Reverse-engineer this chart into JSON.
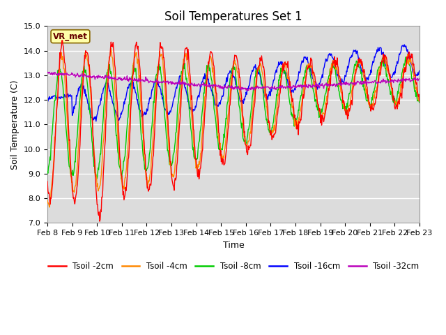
{
  "title": "Soil Temperatures Set 1",
  "xlabel": "Time",
  "ylabel": "Soil Temperature (C)",
  "ylim": [
    7.0,
    15.0
  ],
  "yticks": [
    7.0,
    8.0,
    9.0,
    10.0,
    11.0,
    12.0,
    13.0,
    14.0,
    15.0
  ],
  "x_label_days": [
    8,
    9,
    10,
    11,
    12,
    13,
    14,
    15,
    16,
    17,
    18,
    19,
    20,
    21,
    22,
    23
  ],
  "n_points": 720,
  "total_days": 15,
  "colors": {
    "2cm": "#ff0000",
    "4cm": "#ff8800",
    "8cm": "#00cc00",
    "16cm": "#0000ff",
    "32cm": "#bb00bb"
  },
  "legend_labels": [
    "Tsoil -2cm",
    "Tsoil -4cm",
    "Tsoil -8cm",
    "Tsoil -16cm",
    "Tsoil -32cm"
  ],
  "vr_met_label": "VR_met",
  "plot_bg_color": "#dcdcdc",
  "fig_bg_color": "#ffffff",
  "title_fontsize": 12,
  "axis_label_fontsize": 9,
  "tick_fontsize": 8
}
